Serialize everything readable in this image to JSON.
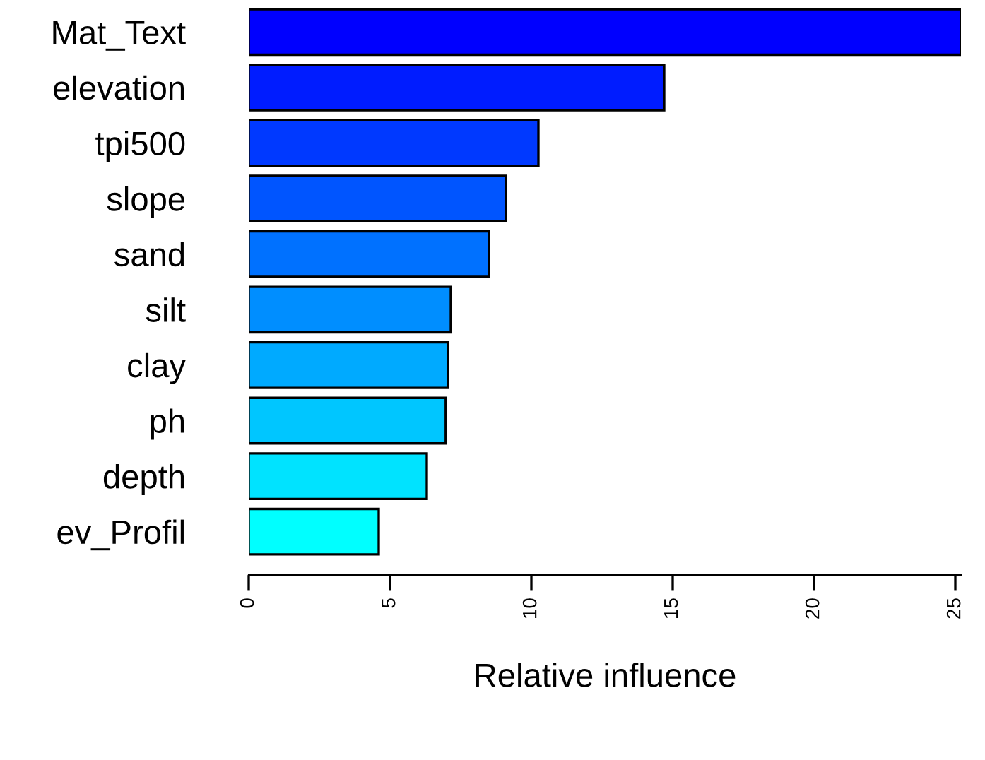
{
  "chart_data": {
    "type": "bar",
    "orientation": "horizontal",
    "xlabel": "Relative influence",
    "categories": [
      "Mat_Text",
      "elevation",
      "tpi500",
      "slope",
      "sand",
      "silt",
      "clay",
      "ph",
      "depth",
      "ev_Profil"
    ],
    "values": [
      25.2,
      14.7,
      10.25,
      9.1,
      8.5,
      7.15,
      7.05,
      6.97,
      6.3,
      4.6
    ],
    "colors": [
      "#0000ff",
      "#001cff",
      "#0039ff",
      "#0055ff",
      "#0071ff",
      "#008eff",
      "#00aaff",
      "#00c6ff",
      "#00e3ff",
      "#00ffff"
    ],
    "xlim": [
      0,
      25.2
    ],
    "xticks": [
      0,
      5,
      10,
      15,
      20,
      25
    ],
    "grid": false
  }
}
